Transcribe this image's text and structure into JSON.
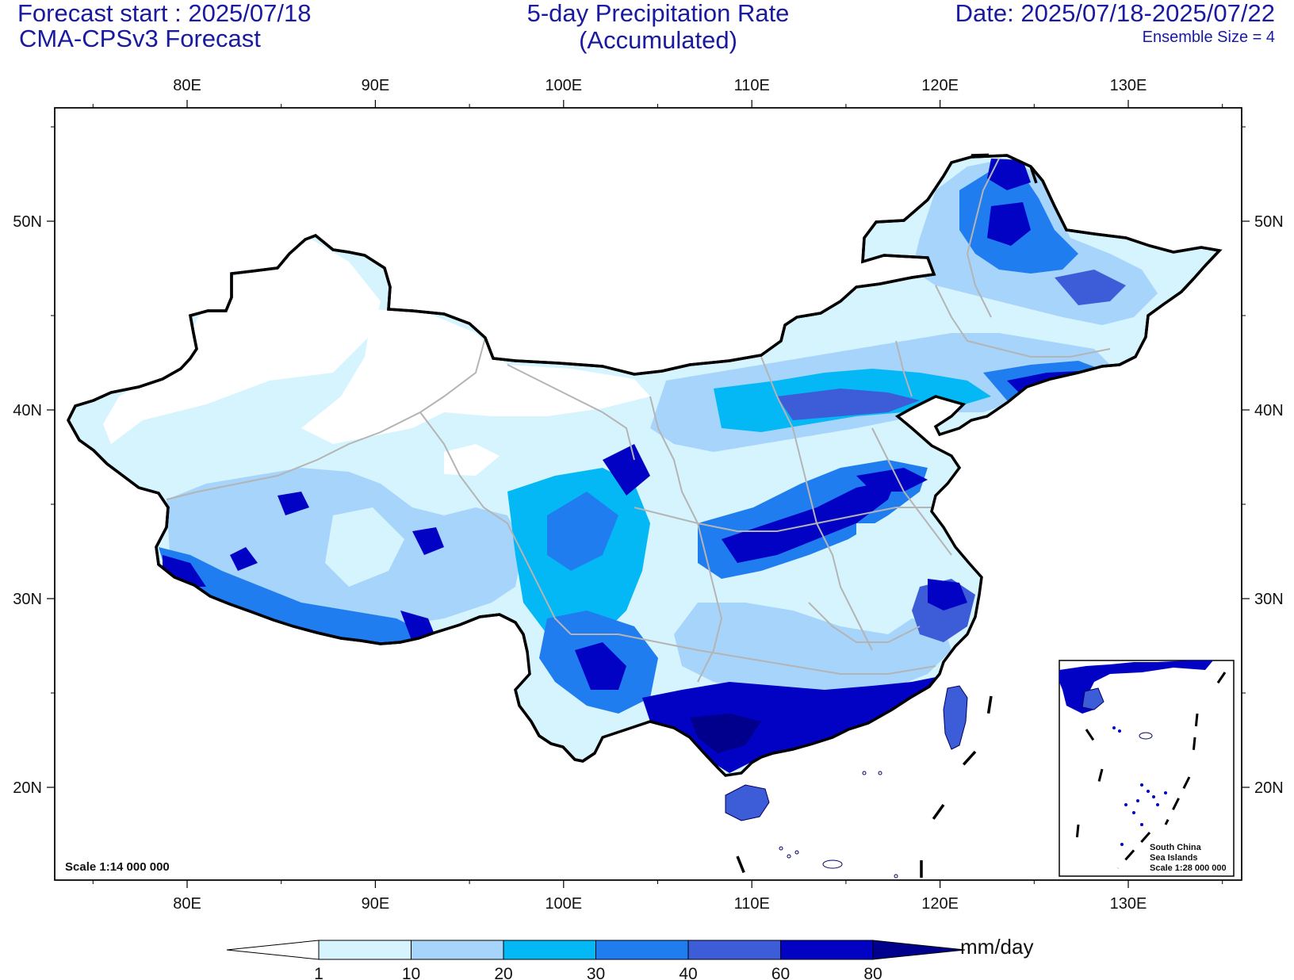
{
  "header": {
    "forecast_start": "Forecast start : 2025/07/18",
    "model": "CMA-CPSv3 Forecast",
    "title_line1": "5-day Precipitation Rate",
    "title_line2": "(Accumulated)",
    "date_range": "Date: 2025/07/18-2025/07/22",
    "ensemble": "Ensemble Size = 4"
  },
  "map": {
    "lon_labels": [
      "80E",
      "90E",
      "100E",
      "110E",
      "120E",
      "130E"
    ],
    "lat_labels": [
      "50N",
      "40N",
      "30N",
      "20N"
    ],
    "scale_note": "Scale 1:14 000 000",
    "inset": {
      "line1": "South China",
      "line2": "Sea Islands",
      "line3": "Scale 1:28 000 000"
    }
  },
  "colorbar": {
    "unit": "mm/day",
    "levels": [
      "1",
      "10",
      "20",
      "30",
      "40",
      "60",
      "80"
    ],
    "colors": [
      "#ffffff",
      "#d6f4fe",
      "#a6d4fb",
      "#04b8f6",
      "#1f7df0",
      "#3d5cd8",
      "#0202c4",
      "#00008c"
    ]
  },
  "colors": {
    "title_text": "#1a1aa0",
    "border": "#000000",
    "province_lines": "#b4b4b4"
  }
}
